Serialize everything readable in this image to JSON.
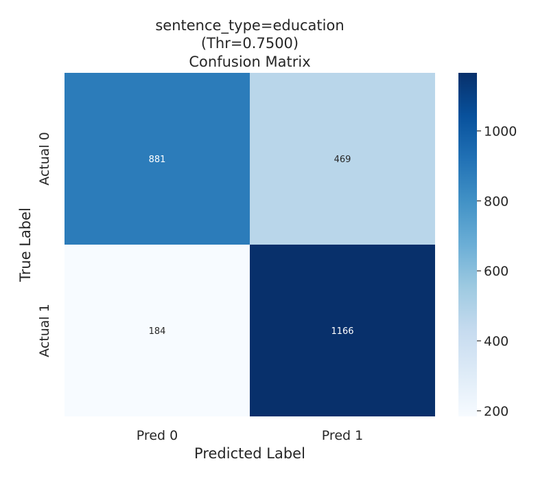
{
  "chart_data": {
    "type": "heatmap",
    "title_lines": [
      "sentence_type=education",
      "(Thr=0.7500)",
      "Confusion Matrix"
    ],
    "xlabel": "Predicted Label",
    "ylabel": "True Label",
    "x_categories": [
      "Pred 0",
      "Pred 1"
    ],
    "y_categories": [
      "Actual 0",
      "Actual 1"
    ],
    "values": [
      [
        881,
        469
      ],
      [
        184,
        1166
      ]
    ],
    "colormap": "Blues",
    "colors": {
      "low": "#f7fbff",
      "high": "#08306b",
      "label_dark": "#262626",
      "label_light": "#ffffff"
    },
    "colorbar": {
      "range": [
        184,
        1166
      ],
      "ticks": [
        200,
        400,
        600,
        800,
        1000
      ],
      "tick_labels": [
        "200",
        "400",
        "600",
        "800",
        "1000"
      ]
    },
    "grid": false,
    "legend": "colorbar-right"
  }
}
